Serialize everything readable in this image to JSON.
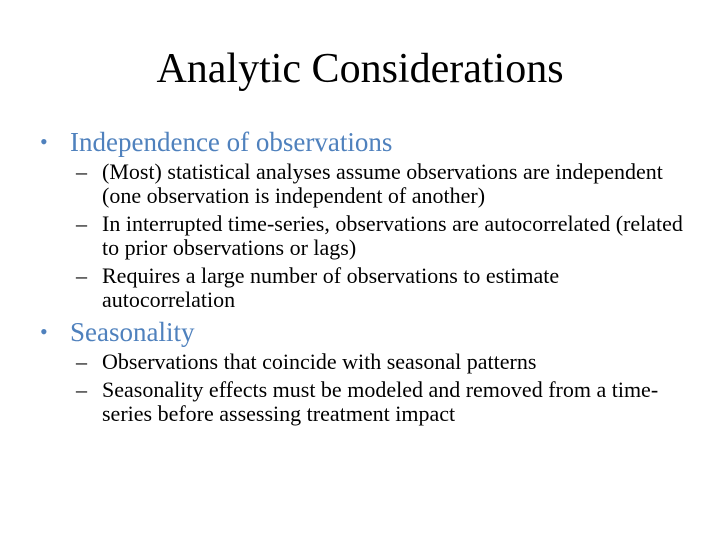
{
  "slide": {
    "title": "Analytic Considerations",
    "bullet_glyph": "•",
    "dash_glyph": "–",
    "accent_color": "#4f81bd",
    "sections": [
      {
        "heading": "Independence of observations",
        "items": [
          "(Most) statistical analyses assume observations are independent (one observation is independent of another)",
          "In interrupted time-series, observations are autocorrelated (related to prior observations or lags)",
          "Requires a large number of observations to estimate autocorrelation"
        ]
      },
      {
        "heading": "Seasonality",
        "items": [
          "Observations that coincide with seasonal patterns",
          "Seasonality effects must be modeled and removed from a time-series before assessing treatment impact"
        ]
      }
    ]
  }
}
